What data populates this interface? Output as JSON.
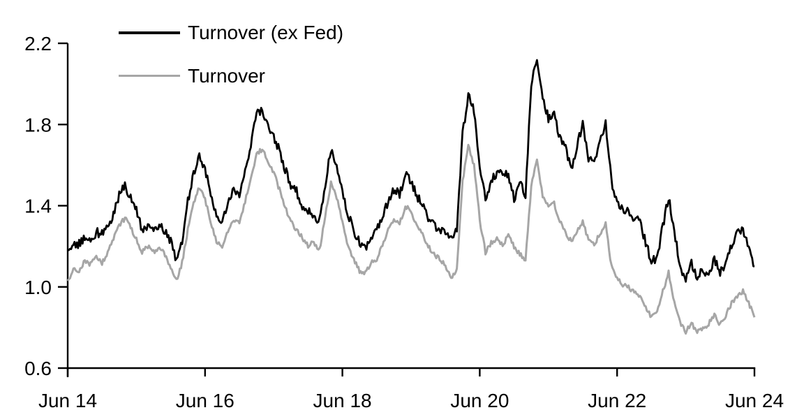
{
  "chart_data": {
    "type": "line",
    "title": "",
    "background": "#FFFFFF",
    "axis_color": "#000000",
    "grid": false,
    "legend_position": "top-left inside plot",
    "x_axis": {
      "start": "Jun 2014",
      "end": "Jun 2024",
      "tick_labels": [
        "Jun 14",
        "Jun 16",
        "Jun 18",
        "Jun 20",
        "Jun 22",
        "Jun 24"
      ]
    },
    "y_axis": {
      "range": [
        0.6,
        2.2
      ],
      "ticks": [
        0.6,
        1.0,
        1.4,
        1.8,
        2.2
      ],
      "tick_labels": [
        "0.6",
        "1.0",
        "1.4",
        "1.8",
        "2.2"
      ]
    },
    "sampling": "monthly, Jun 2014 through Jun 2024",
    "series": [
      {
        "name": "Turnover (ex Fed)",
        "color": "#000000",
        "line_width": 2.8,
        "values": [
          1.18,
          1.22,
          1.21,
          1.25,
          1.23,
          1.27,
          1.26,
          1.3,
          1.36,
          1.45,
          1.5,
          1.44,
          1.39,
          1.27,
          1.31,
          1.27,
          1.3,
          1.27,
          1.23,
          1.13,
          1.23,
          1.42,
          1.56,
          1.65,
          1.58,
          1.46,
          1.36,
          1.32,
          1.42,
          1.48,
          1.46,
          1.58,
          1.7,
          1.85,
          1.87,
          1.8,
          1.74,
          1.67,
          1.58,
          1.5,
          1.47,
          1.4,
          1.37,
          1.35,
          1.32,
          1.5,
          1.68,
          1.6,
          1.47,
          1.36,
          1.28,
          1.22,
          1.18,
          1.24,
          1.28,
          1.35,
          1.42,
          1.48,
          1.46,
          1.55,
          1.52,
          1.45,
          1.4,
          1.34,
          1.3,
          1.28,
          1.26,
          1.24,
          1.28,
          1.75,
          1.95,
          1.87,
          1.6,
          1.43,
          1.52,
          1.56,
          1.55,
          1.56,
          1.43,
          1.52,
          1.44,
          2.0,
          2.12,
          1.93,
          1.83,
          1.86,
          1.73,
          1.68,
          1.57,
          1.7,
          1.8,
          1.63,
          1.6,
          1.72,
          1.8,
          1.52,
          1.41,
          1.39,
          1.37,
          1.34,
          1.32,
          1.22,
          1.12,
          1.15,
          1.3,
          1.44,
          1.28,
          1.1,
          1.04,
          1.12,
          1.04,
          1.09,
          1.05,
          1.14,
          1.07,
          1.12,
          1.21,
          1.26,
          1.28,
          1.18,
          1.1
        ]
      },
      {
        "name": "Turnover",
        "color": "#A6A6A6",
        "line_width": 3,
        "values": [
          1.03,
          1.09,
          1.08,
          1.13,
          1.11,
          1.15,
          1.12,
          1.17,
          1.24,
          1.3,
          1.34,
          1.29,
          1.24,
          1.17,
          1.2,
          1.17,
          1.19,
          1.16,
          1.1,
          1.03,
          1.12,
          1.28,
          1.41,
          1.49,
          1.43,
          1.32,
          1.22,
          1.2,
          1.27,
          1.33,
          1.31,
          1.42,
          1.54,
          1.65,
          1.68,
          1.62,
          1.56,
          1.48,
          1.39,
          1.32,
          1.28,
          1.24,
          1.2,
          1.22,
          1.18,
          1.35,
          1.51,
          1.44,
          1.32,
          1.2,
          1.13,
          1.08,
          1.07,
          1.12,
          1.14,
          1.21,
          1.28,
          1.33,
          1.31,
          1.4,
          1.37,
          1.3,
          1.26,
          1.2,
          1.16,
          1.14,
          1.1,
          1.05,
          1.08,
          1.52,
          1.7,
          1.6,
          1.33,
          1.17,
          1.22,
          1.24,
          1.21,
          1.25,
          1.2,
          1.16,
          1.13,
          1.5,
          1.62,
          1.45,
          1.39,
          1.41,
          1.32,
          1.27,
          1.22,
          1.27,
          1.32,
          1.23,
          1.21,
          1.26,
          1.31,
          1.1,
          1.04,
          1.01,
          1.0,
          0.97,
          0.95,
          0.9,
          0.85,
          0.88,
          0.98,
          1.07,
          0.92,
          0.82,
          0.78,
          0.82,
          0.78,
          0.79,
          0.82,
          0.86,
          0.81,
          0.86,
          0.92,
          0.95,
          0.98,
          0.92,
          0.85
        ]
      }
    ]
  }
}
